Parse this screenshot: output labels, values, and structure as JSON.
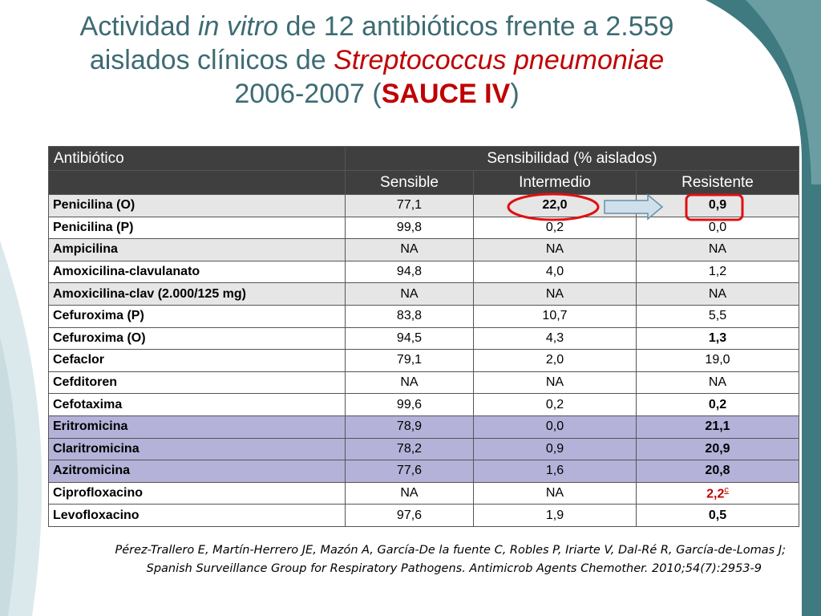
{
  "title": {
    "part1": "Actividad ",
    "part2_italic": "in vitro",
    "part3": " de 12 antibióticos frente a 2.559",
    "part4": "aislados clínicos de ",
    "part5_italic_red": "Streptococcus pneumoniae",
    "part6": "2006-2007 (",
    "part7_bold_red": "SAUCE IV",
    "part8": ")"
  },
  "table": {
    "header_col1": "Antibiótico",
    "header_group": "Sensibilidad  (% aislados)",
    "sub_sensible": "Sensible",
    "sub_intermedio": "Intermedio",
    "sub_resistente": "Resistente",
    "rows": [
      {
        "name": "Penicilina (O)",
        "s": "77,1",
        "i": "22,0",
        "r": "0,9"
      },
      {
        "name": "Penicilina (P)",
        "s": "99,8",
        "i": "0,2",
        "r": "0,0"
      },
      {
        "name": "Ampicilina",
        "s": "NA",
        "i": "NA",
        "r": "NA"
      },
      {
        "name": "Amoxicilina-clavulanato",
        "s": "94,8",
        "i": "4,0",
        "r": "1,2"
      },
      {
        "name": "Amoxicilina-clav (2.000/125 mg)",
        "s": "NA",
        "i": "NA",
        "r": "NA"
      },
      {
        "name": "Cefuroxima (P)",
        "s": "83,8",
        "i": "10,7",
        "r": "5,5"
      },
      {
        "name": "Cefuroxima (O)",
        "s": "94,5",
        "i": "4,3",
        "r": "1,3"
      },
      {
        "name": "Cefaclor",
        "s": "79,1",
        "i": "2,0",
        "r": "19,0"
      },
      {
        "name": "Cefditoren",
        "s": "NA",
        "i": "NA",
        "r": "NA"
      },
      {
        "name": "Cefotaxima",
        "s": "99,6",
        "i": "0,2",
        "r": "0,2"
      },
      {
        "name": "Eritromicina",
        "s": "78,9",
        "i": "0,0",
        "r": "21,1"
      },
      {
        "name": "Claritromicina",
        "s": "78,2",
        "i": "0,9",
        "r": "20,9"
      },
      {
        "name": "Azitromicina",
        "s": "77,6",
        "i": "1,6",
        "r": "20,8"
      },
      {
        "name": "Ciprofloxacino",
        "s": "NA",
        "i": "NA",
        "r": "2,2",
        "r_sup": "c"
      },
      {
        "name": "Levofloxacino",
        "s": "97,6",
        "i": "1,9",
        "r": "0,5"
      }
    ]
  },
  "citation": {
    "line1": "Pérez-Trallero E, Martín-Herrero JE, Mazón A, García-De la fuente C, Robles P, Iriarte V, Dal-Ré R, García-de-Lomas J;",
    "line2": "Spanish Surveillance Group for Respiratory Pathogens. Antimicrob Agents Chemother. 2010;54(7):2953-9"
  },
  "colors": {
    "title": "#3d6b73",
    "accent_red": "#c00000",
    "header_bg": "#3f3f3f",
    "row_grey": "#e6e6e6",
    "row_purple": "#b4b2d8",
    "swoosh_teal": "#3e7a7f",
    "swoosh_light": "#dce9ec"
  }
}
